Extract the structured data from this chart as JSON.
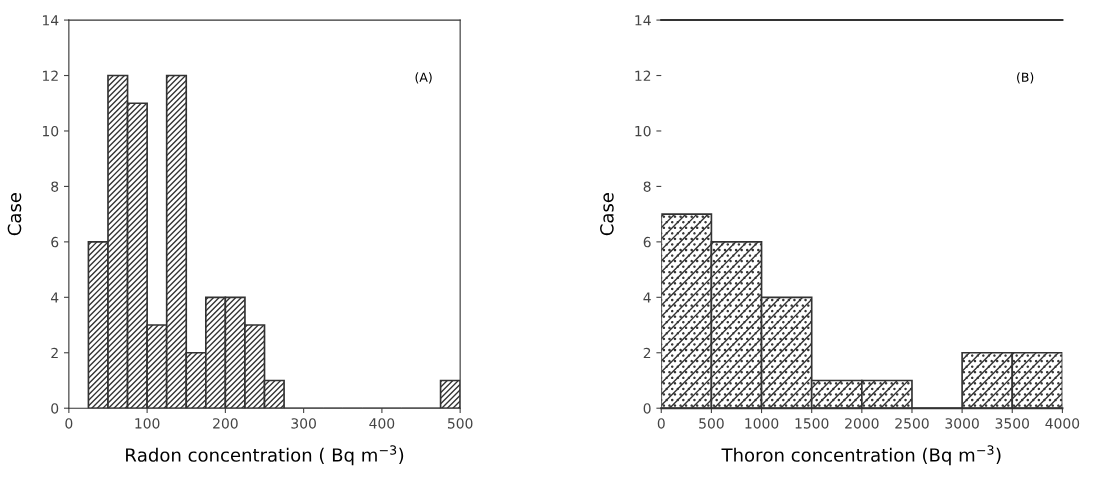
{
  "chart_data": [
    {
      "type": "histogram",
      "xlabel": "Radon concentration ( Bq m$^{−3}$)",
      "ylabel": "Case",
      "annotations": [
        "(A)"
      ],
      "bins": [
        25,
        50,
        75,
        100,
        125,
        150,
        175,
        200,
        225,
        250,
        275,
        300,
        325,
        350,
        375,
        400,
        425,
        450,
        475,
        500
      ],
      "values": [
        6,
        12,
        11,
        3,
        12,
        2,
        4,
        4,
        3,
        1,
        0,
        0,
        0,
        0,
        0,
        0,
        0,
        0,
        1
      ],
      "color": "#333333",
      "xlim": [
        0,
        500
      ],
      "xticks": [
        0,
        100,
        200,
        300,
        400,
        500
      ],
      "ylim": [
        0,
        14
      ],
      "yticks": [
        0,
        2,
        4,
        6,
        8,
        10,
        12,
        14
      ],
      "grid": false,
      "legend": false
    },
    {
      "type": "histogram",
      "xlabel": "Thoron concentration (Bq m$^{−3}$)",
      "ylabel": "Case",
      "annotations": [
        "(B)"
      ],
      "bins": [
        0,
        500,
        1000,
        1500,
        2000,
        2500,
        3000,
        3500,
        4000
      ],
      "values": [
        7,
        6,
        4,
        1,
        1,
        0,
        2,
        2
      ],
      "color": "#333333",
      "xlim": [
        0,
        4000
      ],
      "xticks": [
        0,
        500,
        1000,
        1500,
        2000,
        2500,
        3000,
        3500,
        4000
      ],
      "ylim": [
        0,
        14
      ],
      "yticks": [
        0,
        2,
        4,
        6,
        8,
        10,
        12,
        14
      ],
      "grid": false,
      "legend": false
    }
  ]
}
